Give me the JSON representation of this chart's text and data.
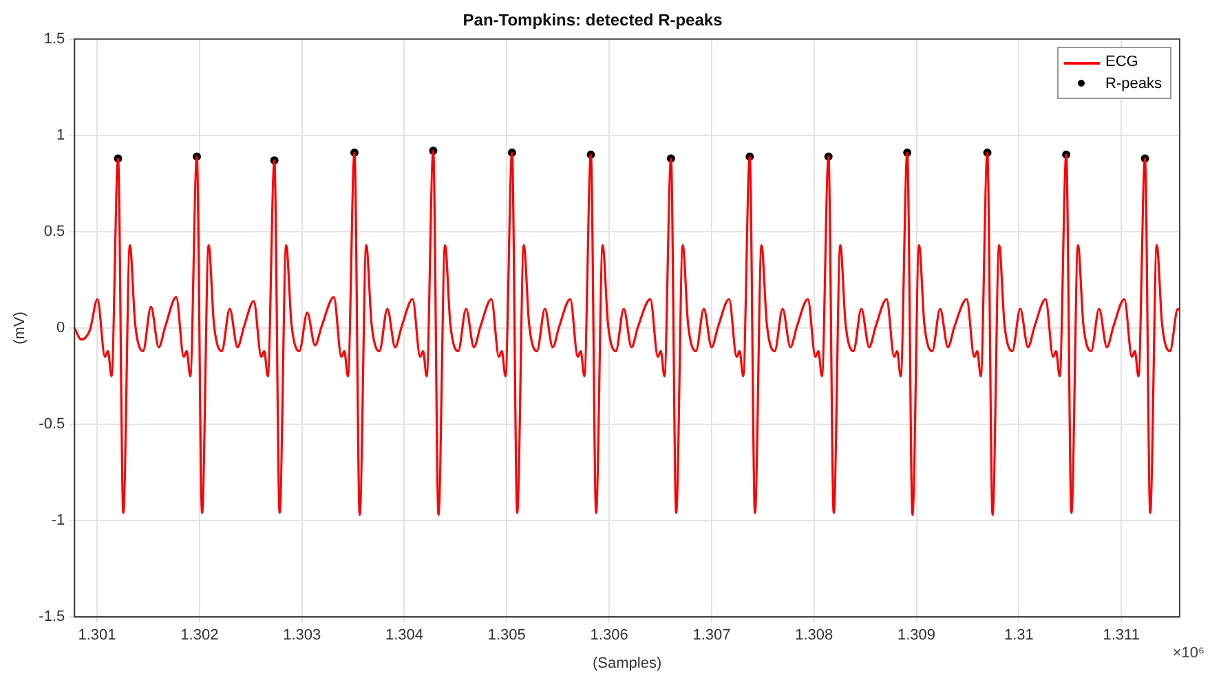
{
  "chart_data": {
    "type": "line",
    "title": "Pan-Tompkins: detected R-peaks",
    "xlabel": "(Samples)",
    "ylabel": "(mV)",
    "annotations": [
      "×10⁶"
    ],
    "xlim": [
      1.30078,
      1.31157
    ],
    "ylim": [
      -1.5,
      1.5
    ],
    "xticks": [
      1.301,
      1.302,
      1.303,
      1.304,
      1.305,
      1.306,
      1.307,
      1.308,
      1.309,
      1.31,
      1.311
    ],
    "yticks": [
      -1.5,
      -1,
      -0.5,
      0,
      0.5,
      1,
      1.5
    ],
    "grid": true,
    "legend": "top right",
    "series": [
      {
        "name": "ECG",
        "type": "line",
        "color": "#ff0000",
        "marker": "none",
        "line_style": "solid",
        "x": [
          1.30078,
          1.300845,
          1.30093,
          1.301004,
          1.301077,
          1.301106,
          1.301141,
          1.301205,
          1.301256,
          1.30132,
          1.301372,
          1.301449,
          1.301526,
          1.301602,
          1.301667,
          1.301773,
          1.301846,
          1.301875,
          1.30191,
          1.301974,
          1.302025,
          1.302089,
          1.302141,
          1.302218,
          1.302295,
          1.302371,
          1.302436,
          1.30253,
          1.302603,
          1.302632,
          1.302667,
          1.302731,
          1.302782,
          1.302846,
          1.302898,
          1.302975,
          1.303052,
          1.303128,
          1.303193,
          1.303312,
          1.303385,
          1.303414,
          1.303449,
          1.303513,
          1.303564,
          1.303628,
          1.30368,
          1.303757,
          1.303834,
          1.30391,
          1.303975,
          1.304081,
          1.304154,
          1.304183,
          1.304218,
          1.304282,
          1.304333,
          1.304397,
          1.304449,
          1.304526,
          1.304603,
          1.304679,
          1.304744,
          1.30485,
          1.304923,
          1.304952,
          1.304987,
          1.305051,
          1.305102,
          1.305166,
          1.305218,
          1.305295,
          1.305372,
          1.305448,
          1.305513,
          1.30562,
          1.305693,
          1.305722,
          1.305757,
          1.305821,
          1.305872,
          1.305936,
          1.305988,
          1.306065,
          1.306142,
          1.306218,
          1.306283,
          1.306402,
          1.306475,
          1.306504,
          1.306539,
          1.306603,
          1.306654,
          1.306718,
          1.30677,
          1.306847,
          1.306924,
          1.307,
          1.307065,
          1.307171,
          1.307244,
          1.307273,
          1.307308,
          1.307372,
          1.307423,
          1.307487,
          1.307539,
          1.307616,
          1.307693,
          1.307769,
          1.307834,
          1.30794,
          1.308013,
          1.308042,
          1.308077,
          1.308141,
          1.308192,
          1.308256,
          1.308308,
          1.308385,
          1.308462,
          1.308538,
          1.308603,
          1.308709,
          1.308782,
          1.308811,
          1.308846,
          1.30891,
          1.308961,
          1.309025,
          1.309077,
          1.309154,
          1.309231,
          1.309307,
          1.309372,
          1.309491,
          1.309564,
          1.309593,
          1.309628,
          1.309692,
          1.309743,
          1.309807,
          1.309859,
          1.309936,
          1.310013,
          1.310089,
          1.310154,
          1.310261,
          1.310334,
          1.310363,
          1.310398,
          1.310462,
          1.310513,
          1.310577,
          1.310629,
          1.310706,
          1.310783,
          1.310859,
          1.310924,
          1.31103,
          1.311103,
          1.311132,
          1.311167,
          1.311231,
          1.311282,
          1.311346,
          1.311398,
          1.311475,
          1.311552,
          1.31157
        ],
        "values": [
          0,
          -0.06,
          -0.01,
          0.15,
          -0.15,
          -0.12,
          -0.25,
          0.88,
          -0.96,
          0.43,
          0.02,
          -0.12,
          0.11,
          -0.1,
          0.01,
          0.16,
          -0.15,
          -0.12,
          -0.25,
          0.89,
          -0.96,
          0.43,
          0.02,
          -0.12,
          0.1,
          -0.1,
          0.01,
          0.14,
          -0.15,
          -0.12,
          -0.25,
          0.87,
          -0.96,
          0.43,
          0.02,
          -0.12,
          0.08,
          -0.09,
          0.01,
          0.16,
          -0.15,
          -0.12,
          -0.25,
          0.91,
          -0.97,
          0.43,
          0.02,
          -0.12,
          0.1,
          -0.1,
          0.01,
          0.15,
          -0.15,
          -0.12,
          -0.25,
          0.92,
          -0.97,
          0.43,
          0.02,
          -0.12,
          0.1,
          -0.1,
          0.01,
          0.15,
          -0.15,
          -0.12,
          -0.25,
          0.91,
          -0.96,
          0.43,
          0.02,
          -0.12,
          0.1,
          -0.1,
          0.01,
          0.15,
          -0.15,
          -0.12,
          -0.25,
          0.9,
          -0.96,
          0.43,
          0.02,
          -0.12,
          0.1,
          -0.1,
          0.01,
          0.15,
          -0.15,
          -0.12,
          -0.25,
          0.88,
          -0.96,
          0.43,
          0.02,
          -0.12,
          0.1,
          -0.1,
          0.01,
          0.15,
          -0.15,
          -0.12,
          -0.25,
          0.89,
          -0.96,
          0.43,
          0.02,
          -0.12,
          0.1,
          -0.1,
          0.01,
          0.15,
          -0.15,
          -0.12,
          -0.25,
          0.89,
          -0.96,
          0.43,
          0.02,
          -0.12,
          0.1,
          -0.1,
          0.01,
          0.15,
          -0.15,
          -0.12,
          -0.25,
          0.91,
          -0.97,
          0.43,
          0.02,
          -0.12,
          0.1,
          -0.1,
          0.01,
          0.15,
          -0.15,
          -0.12,
          -0.25,
          0.91,
          -0.97,
          0.43,
          0.02,
          -0.12,
          0.1,
          -0.1,
          0.01,
          0.15,
          -0.15,
          -0.12,
          -0.25,
          0.9,
          -0.96,
          0.43,
          0.02,
          -0.12,
          0.1,
          -0.1,
          0.01,
          0.15,
          -0.15,
          -0.12,
          -0.25,
          0.88,
          -0.96,
          0.43,
          0.02,
          -0.12,
          0.1,
          0.09
        ]
      },
      {
        "name": "R-peaks",
        "type": "scatter",
        "color": "#000000",
        "marker": "circle",
        "x": [
          1.301205,
          1.301974,
          1.302731,
          1.303513,
          1.304282,
          1.305051,
          1.305821,
          1.306603,
          1.307372,
          1.308141,
          1.30891,
          1.309692,
          1.310462,
          1.311231
        ],
        "values": [
          0.88,
          0.89,
          0.87,
          0.91,
          0.92,
          0.91,
          0.9,
          0.88,
          0.89,
          0.89,
          0.91,
          0.91,
          0.9,
          0.88
        ]
      }
    ]
  }
}
